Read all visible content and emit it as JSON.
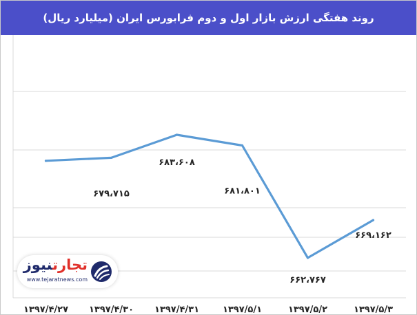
{
  "chart_data": {
    "type": "line",
    "title": "روند هفتگی ارزش بازار اول و دوم فرابورس  ایران (میلیارد ریال)",
    "categories": [
      "۱۳۹۷/۴/۲۷",
      "۱۳۹۷/۴/۳۰",
      "۱۳۹۷/۴/۳۱",
      "۱۳۹۷/۵/۱",
      "۱۳۹۷/۵/۲",
      "۱۳۹۷/۵/۳"
    ],
    "values": [
      679.2,
      679.715,
      683.608,
      681.801,
      662.767,
      669.162
    ],
    "data_labels": [
      "",
      "۶۷۹،۷۱۵",
      "۶۸۳،۶۰۸",
      "۶۸۱،۸۰۱",
      "۶۶۲،۷۶۷",
      "۶۶۹،۱۶۲"
    ],
    "ylim": [
      656,
      697
    ],
    "grid": true,
    "color": "#5b9bd5"
  },
  "header_color": "#4b4fc9",
  "logo": {
    "brand_part1": "تجارت",
    "brand_part2": "نیوز",
    "site": "www.tejaratnews.com",
    "icon": "tejarat-news-logo-icon"
  }
}
